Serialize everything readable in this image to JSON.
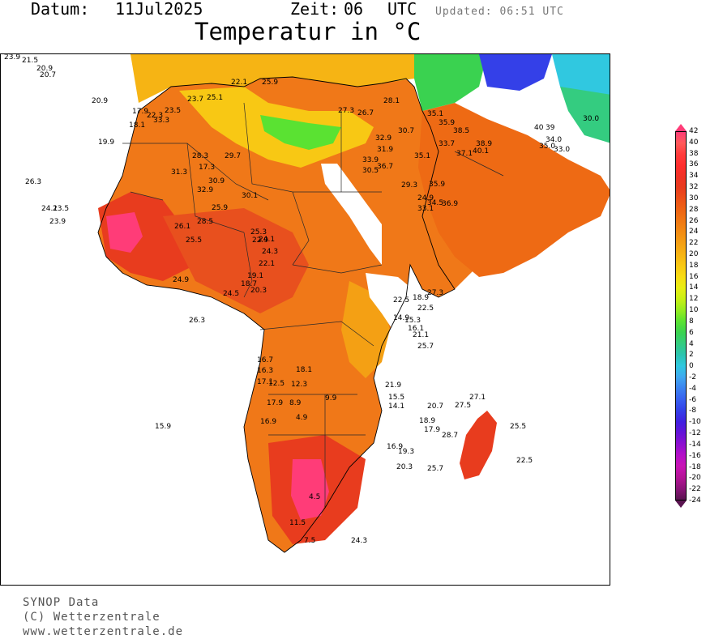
{
  "header": {
    "date_label": "Datum:",
    "date_value": "11Jul2025",
    "time_label": "Zeit:",
    "time_value": "06",
    "time_zone": "UTC",
    "updated": "Updated: 06:51 UTC",
    "title": "Temperatur in °C"
  },
  "credits": {
    "line1": "SYNOP Data",
    "line2": "(C) Wetterzentrale",
    "line3": "www.wetterzentrale.de"
  },
  "legend": {
    "ticks": [
      "42",
      "40",
      "38",
      "36",
      "34",
      "32",
      "30",
      "28",
      "26",
      "24",
      "22",
      "20",
      "18",
      "16",
      "14",
      "12",
      "10",
      "8",
      "6",
      "4",
      "2",
      "0",
      "-2",
      "-4",
      "-6",
      "-8",
      "-10",
      "-12",
      "-14",
      "-16",
      "-18",
      "-20",
      "-22",
      "-24"
    ],
    "colors": [
      "#ff3c78",
      "#ff5a5a",
      "#ff3c3c",
      "#ff2e2e",
      "#f03226",
      "#e83c1e",
      "#ec5018",
      "#ee6414",
      "#f07814",
      "#f28c14",
      "#f4a014",
      "#f6b414",
      "#f8c814",
      "#f8dc14",
      "#e8ee14",
      "#c8f014",
      "#96ec20",
      "#5ae232",
      "#3ad250",
      "#34cc80",
      "#2cc4b0",
      "#30c8e0",
      "#40a8f0",
      "#3c82f0",
      "#3860f0",
      "#3440e8",
      "#4020e0",
      "#6414d8",
      "#8c10d0",
      "#b410c8",
      "#c814b4",
      "#b41496",
      "#8c1478",
      "#5a1450"
    ]
  },
  "stations": [
    {
      "v": "23.9"
    },
    {
      "v": "21.5"
    },
    {
      "v": "20.9"
    },
    {
      "v": "20.7"
    },
    {
      "v": "20.9"
    },
    {
      "v": "17.9"
    },
    {
      "v": "18.1"
    },
    {
      "v": "22.3"
    },
    {
      "v": "33.3"
    },
    {
      "v": "19.9"
    },
    {
      "v": "24.1"
    },
    {
      "v": "23.5"
    },
    {
      "v": "23.9"
    },
    {
      "v": "31.3"
    },
    {
      "v": "28.3"
    },
    {
      "v": "17.3"
    },
    {
      "v": "29.7"
    },
    {
      "v": "30.9"
    },
    {
      "v": "32.9"
    },
    {
      "v": "30.1"
    },
    {
      "v": "25.9"
    },
    {
      "v": "28.5"
    },
    {
      "v": "26.1"
    },
    {
      "v": "25.5"
    },
    {
      "v": "25.3"
    },
    {
      "v": "24.1"
    },
    {
      "v": "22.9"
    },
    {
      "v": "24.3"
    },
    {
      "v": "22.1"
    },
    {
      "v": "24.9"
    },
    {
      "v": "24.5"
    },
    {
      "v": "20.3"
    },
    {
      "v": "18.7"
    },
    {
      "v": "19.1"
    },
    {
      "v": "26.3"
    },
    {
      "v": "27.3"
    },
    {
      "v": "26.7"
    },
    {
      "v": "28.1"
    },
    {
      "v": "30.7"
    },
    {
      "v": "32.9"
    },
    {
      "v": "35.9"
    },
    {
      "v": "38.5"
    },
    {
      "v": "35.1"
    },
    {
      "v": "33.7"
    },
    {
      "v": "38.9"
    },
    {
      "v": "40.1"
    },
    {
      "v": "37.1"
    },
    {
      "v": "33.9"
    },
    {
      "v": "36.7"
    },
    {
      "v": "30.5"
    },
    {
      "v": "29.3"
    },
    {
      "v": "35.9"
    },
    {
      "v": "24.9"
    },
    {
      "v": "33.1"
    },
    {
      "v": "34.5"
    },
    {
      "v": "36.9"
    },
    {
      "v": "35.1"
    },
    {
      "v": "31.9"
    },
    {
      "v": "40"
    },
    {
      "v": "39"
    },
    {
      "v": "34.0"
    },
    {
      "v": "35.0"
    },
    {
      "v": "33.0"
    },
    {
      "v": "30.0"
    },
    {
      "v": "22.5"
    },
    {
      "v": "18.9"
    },
    {
      "v": "27.3"
    },
    {
      "v": "22.5"
    },
    {
      "v": "14.9"
    },
    {
      "v": "15.3"
    },
    {
      "v": "16.1"
    },
    {
      "v": "21.1"
    },
    {
      "v": "25.7"
    },
    {
      "v": "16.7"
    },
    {
      "v": "16.3"
    },
    {
      "v": "18.1"
    },
    {
      "v": "17.1"
    },
    {
      "v": "12.5"
    },
    {
      "v": "12.3"
    },
    {
      "v": "17.9"
    },
    {
      "v": "8.9"
    },
    {
      "v": "9.9"
    },
    {
      "v": "4.9"
    },
    {
      "v": "16.9"
    },
    {
      "v": "15.9"
    },
    {
      "v": "21.9"
    },
    {
      "v": "15.5"
    },
    {
      "v": "14.1"
    },
    {
      "v": "20.7"
    },
    {
      "v": "27.5"
    },
    {
      "v": "27.1"
    },
    {
      "v": "18.9"
    },
    {
      "v": "17.9"
    },
    {
      "v": "28.7"
    },
    {
      "v": "25.5"
    },
    {
      "v": "22.5"
    },
    {
      "v": "25.7"
    },
    {
      "v": "20.3"
    },
    {
      "v": "16.9"
    },
    {
      "v": "19.3"
    },
    {
      "v": "11.5"
    },
    {
      "v": "7.5"
    },
    {
      "v": "4.5"
    },
    {
      "v": "24.3"
    },
    {
      "v": "26.3"
    },
    {
      "v": "25.1"
    },
    {
      "v": "23.7"
    },
    {
      "v": "22.1"
    },
    {
      "v": "23.5"
    },
    {
      "v": "25.9"
    }
  ]
}
